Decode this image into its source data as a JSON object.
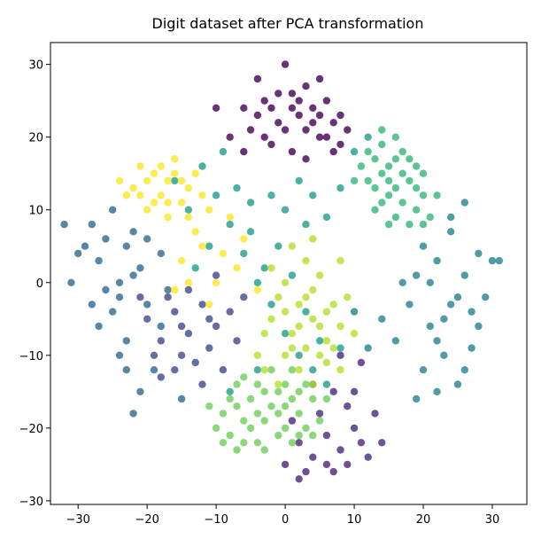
{
  "chart_data": {
    "type": "scatter",
    "title": "Digit dataset after PCA transformation",
    "xlabel": "",
    "ylabel": "",
    "xlim": [
      -34,
      35
    ],
    "ylim": [
      -30.5,
      33
    ],
    "xticks": [
      -30,
      -20,
      -10,
      0,
      10,
      20,
      30
    ],
    "yticks": [
      -30,
      -20,
      -10,
      0,
      10,
      20,
      30
    ],
    "grid": false,
    "legend": "none",
    "colormap": "viridis",
    "point_alpha": 0.8,
    "series": [
      {
        "color": "#440154",
        "points": [
          [
            -4,
            28
          ],
          [
            -3,
            25
          ],
          [
            -1,
            22
          ],
          [
            0,
            30
          ],
          [
            1,
            26
          ],
          [
            2,
            23
          ],
          [
            3,
            21
          ],
          [
            4,
            24
          ],
          [
            5,
            20
          ],
          [
            6,
            25
          ],
          [
            7,
            22
          ],
          [
            8,
            19
          ],
          [
            -5,
            21
          ],
          [
            -6,
            24
          ],
          [
            -2,
            19
          ],
          [
            1,
            18
          ],
          [
            3,
            27
          ],
          [
            5,
            28
          ],
          [
            -4,
            23
          ],
          [
            2,
            25
          ],
          [
            4,
            22
          ],
          [
            6,
            20
          ],
          [
            8,
            23
          ],
          [
            -1,
            26
          ],
          [
            0,
            21
          ],
          [
            9,
            21
          ],
          [
            -8,
            20
          ],
          [
            -10,
            24
          ],
          [
            -3,
            20
          ],
          [
            7,
            18
          ],
          [
            -6,
            18
          ],
          [
            3,
            17
          ],
          [
            1,
            24
          ],
          [
            5,
            23
          ],
          [
            -2,
            24
          ]
        ]
      },
      {
        "color": "#482878",
        "points": [
          [
            1,
            -19
          ],
          [
            2,
            -22
          ],
          [
            4,
            -24
          ],
          [
            6,
            -21
          ],
          [
            8,
            -23
          ],
          [
            10,
            -20
          ],
          [
            9,
            -17
          ],
          [
            11,
            -22
          ],
          [
            7,
            -26
          ],
          [
            3,
            -26
          ],
          [
            5,
            -18
          ],
          [
            12,
            -24
          ],
          [
            0,
            -25
          ],
          [
            6,
            -25
          ],
          [
            9,
            -25
          ],
          [
            13,
            -18
          ],
          [
            7,
            -15
          ],
          [
            4,
            -14
          ],
          [
            10,
            -15
          ],
          [
            8,
            -10
          ],
          [
            2,
            -27
          ],
          [
            11,
            -11
          ],
          [
            14,
            -22
          ]
        ]
      },
      {
        "color": "#3e4989",
        "points": [
          [
            -20,
            -5
          ],
          [
            -18,
            -8
          ],
          [
            -16,
            -4
          ],
          [
            -14,
            -7
          ],
          [
            -12,
            -3
          ],
          [
            -15,
            -10
          ],
          [
            -17,
            -2
          ],
          [
            -10,
            -6
          ],
          [
            -13,
            -11
          ],
          [
            -19,
            -10
          ],
          [
            -11,
            -9
          ],
          [
            -8,
            -4
          ],
          [
            -14,
            -1
          ],
          [
            -21,
            -2
          ],
          [
            -16,
            -12
          ],
          [
            -9,
            -12
          ],
          [
            -12,
            -14
          ],
          [
            -7,
            -8
          ],
          [
            -18,
            -13
          ],
          [
            -10,
            1
          ],
          [
            -6,
            -2
          ],
          [
            -15,
            -6
          ],
          [
            -11,
            -5
          ]
        ]
      },
      {
        "color": "#31688e",
        "points": [
          [
            -28,
            8
          ],
          [
            -25,
            10
          ],
          [
            -23,
            5
          ],
          [
            -27,
            3
          ],
          [
            -24,
            0
          ],
          [
            -21,
            2
          ],
          [
            -26,
            -1
          ],
          [
            -22,
            7
          ],
          [
            -29,
            5
          ],
          [
            -20,
            -3
          ],
          [
            -18,
            4
          ],
          [
            -25,
            -4
          ],
          [
            -23,
            -8
          ],
          [
            -19,
            -12
          ],
          [
            -21,
            -15
          ],
          [
            -27,
            -6
          ],
          [
            -31,
            0
          ],
          [
            -32,
            8
          ],
          [
            -24,
            -2
          ],
          [
            -22,
            1
          ],
          [
            -17,
            -1
          ],
          [
            -26,
            6
          ],
          [
            -30,
            4
          ],
          [
            -20,
            6
          ],
          [
            -23,
            -12
          ],
          [
            -28,
            -3
          ],
          [
            -18,
            -6
          ],
          [
            -24,
            -10
          ],
          [
            -15,
            -16
          ],
          [
            -22,
            -18
          ]
        ]
      },
      {
        "color": "#26828e",
        "points": [
          [
            20,
            5
          ],
          [
            22,
            3
          ],
          [
            24,
            7
          ],
          [
            26,
            1
          ],
          [
            28,
            4
          ],
          [
            25,
            -2
          ],
          [
            23,
            -5
          ],
          [
            21,
            0
          ],
          [
            27,
            -4
          ],
          [
            24,
            9
          ],
          [
            26,
            11
          ],
          [
            29,
            -2
          ],
          [
            30,
            3
          ],
          [
            18,
            -3
          ],
          [
            16,
            -8
          ],
          [
            20,
            -12
          ],
          [
            23,
            -10
          ],
          [
            25,
            -14
          ],
          [
            27,
            -9
          ],
          [
            19,
            1
          ],
          [
            22,
            -8
          ],
          [
            28,
            -6
          ],
          [
            31,
            3
          ],
          [
            17,
            0
          ],
          [
            21,
            -6
          ],
          [
            26,
            -12
          ],
          [
            22,
            -15
          ],
          [
            24,
            -3
          ],
          [
            14,
            -5
          ],
          [
            12,
            -9
          ],
          [
            10,
            -4
          ],
          [
            19,
            -16
          ]
        ]
      },
      {
        "color": "#1f9e89",
        "points": [
          [
            -12,
            16
          ],
          [
            -10,
            12
          ],
          [
            -8,
            8
          ],
          [
            -6,
            4
          ],
          [
            -4,
            0
          ],
          [
            -2,
            -3
          ],
          [
            0,
            -7
          ],
          [
            2,
            -10
          ],
          [
            4,
            -12
          ],
          [
            -14,
            10
          ],
          [
            -9,
            18
          ],
          [
            -7,
            13
          ],
          [
            -5,
            7
          ],
          [
            -3,
            2
          ],
          [
            -1,
            5
          ],
          [
            1,
            1
          ],
          [
            3,
            -4
          ],
          [
            5,
            -8
          ],
          [
            -11,
            5
          ],
          [
            -13,
            2
          ],
          [
            2,
            14
          ],
          [
            4,
            12
          ],
          [
            6,
            9
          ],
          [
            8,
            13
          ],
          [
            10,
            18
          ],
          [
            12,
            20
          ],
          [
            -8,
            -15
          ],
          [
            -4,
            -12
          ],
          [
            6,
            -14
          ],
          [
            8,
            -9
          ],
          [
            -5,
            11
          ],
          [
            -16,
            14
          ],
          [
            0,
            10
          ],
          [
            3,
            8
          ],
          [
            -2,
            12
          ]
        ]
      },
      {
        "color": "#35b779",
        "points": [
          [
            12,
            18
          ],
          [
            14,
            15
          ],
          [
            16,
            17
          ],
          [
            18,
            14
          ],
          [
            15,
            12
          ],
          [
            13,
            13
          ],
          [
            17,
            11
          ],
          [
            19,
            16
          ],
          [
            20,
            12
          ],
          [
            14,
            19
          ],
          [
            11,
            16
          ],
          [
            16,
            9
          ],
          [
            18,
            8
          ],
          [
            13,
            10
          ],
          [
            15,
            16
          ],
          [
            17,
            18
          ],
          [
            19,
            10
          ],
          [
            12,
            14
          ],
          [
            20,
            15
          ],
          [
            16,
            13
          ],
          [
            14,
            11
          ],
          [
            18,
            17
          ],
          [
            21,
            9
          ],
          [
            10,
            14
          ],
          [
            15,
            8
          ],
          [
            19,
            13
          ],
          [
            22,
            12
          ],
          [
            17,
            15
          ],
          [
            13,
            17
          ],
          [
            16,
            20
          ],
          [
            14,
            21
          ],
          [
            20,
            8
          ],
          [
            15,
            14
          ]
        ]
      },
      {
        "color": "#6ece58",
        "points": [
          [
            -7,
            -17
          ],
          [
            -5,
            -20
          ],
          [
            -3,
            -15
          ],
          [
            -1,
            -18
          ],
          [
            1,
            -16
          ],
          [
            3,
            -20
          ],
          [
            -6,
            -13
          ],
          [
            -4,
            -22
          ],
          [
            -2,
            -12
          ],
          [
            0,
            -14
          ],
          [
            2,
            -18
          ],
          [
            4,
            -16
          ],
          [
            -8,
            -21
          ],
          [
            -9,
            -18
          ],
          [
            -3,
            -19
          ],
          [
            -1,
            -21
          ],
          [
            1,
            -22
          ],
          [
            5,
            -19
          ],
          [
            -5,
            -16
          ],
          [
            -7,
            -14
          ],
          [
            3,
            -14
          ],
          [
            -2,
            -17
          ],
          [
            0,
            -20
          ],
          [
            -10,
            -20
          ],
          [
            -6,
            -19
          ],
          [
            2,
            -15
          ],
          [
            4,
            -21
          ],
          [
            -4,
            -14
          ],
          [
            -8,
            -16
          ],
          [
            6,
            -16
          ],
          [
            -1,
            -15
          ],
          [
            -11,
            -17
          ],
          [
            -3,
            -23
          ],
          [
            -6,
            -22
          ],
          [
            1,
            -12
          ],
          [
            -9,
            -22
          ],
          [
            0,
            -17
          ],
          [
            2,
            -21
          ],
          [
            -4,
            -18
          ],
          [
            -7,
            -23
          ]
        ]
      },
      {
        "color": "#b5de2b",
        "points": [
          [
            0,
            0
          ],
          [
            2,
            -3
          ],
          [
            4,
            -1
          ],
          [
            6,
            -4
          ],
          [
            8,
            -6
          ],
          [
            -2,
            -5
          ],
          [
            1,
            -7
          ],
          [
            3,
            -9
          ],
          [
            5,
            -6
          ],
          [
            7,
            -9
          ],
          [
            -1,
            -2
          ],
          [
            0,
            -10
          ],
          [
            2,
            -12
          ],
          [
            4,
            -14
          ],
          [
            6,
            -11
          ],
          [
            8,
            -12
          ],
          [
            -3,
            -7
          ],
          [
            -4,
            -10
          ],
          [
            3,
            3
          ],
          [
            5,
            1
          ],
          [
            1,
            5
          ],
          [
            -2,
            2
          ],
          [
            9,
            -2
          ],
          [
            4,
            -5
          ],
          [
            6,
            -8
          ],
          [
            0,
            -4
          ],
          [
            -3,
            -12
          ],
          [
            2,
            -6
          ],
          [
            5,
            -10
          ],
          [
            7,
            -3
          ],
          [
            3,
            -2
          ],
          [
            1,
            -9
          ],
          [
            -1,
            -14
          ],
          [
            4,
            6
          ],
          [
            8,
            3
          ],
          [
            10,
            -7
          ]
        ]
      },
      {
        "color": "#fde725",
        "points": [
          [
            -20,
            14
          ],
          [
            -18,
            12
          ],
          [
            -16,
            15
          ],
          [
            -14,
            13
          ],
          [
            -17,
            11
          ],
          [
            -19,
            15
          ],
          [
            -15,
            11
          ],
          [
            -21,
            12
          ],
          [
            -16,
            17
          ],
          [
            -13,
            15
          ],
          [
            -18,
            16
          ],
          [
            -12,
            12
          ],
          [
            -20,
            10
          ],
          [
            -17,
            14
          ],
          [
            -14,
            9
          ],
          [
            -19,
            11
          ],
          [
            -22,
            13
          ],
          [
            -15,
            14
          ],
          [
            -11,
            10
          ],
          [
            -13,
            7
          ],
          [
            -9,
            4
          ],
          [
            -10,
            0
          ],
          [
            -12,
            5
          ],
          [
            -8,
            9
          ],
          [
            -7,
            2
          ],
          [
            -15,
            3
          ],
          [
            -16,
            -1
          ],
          [
            -11,
            -3
          ],
          [
            -6,
            6
          ],
          [
            -4,
            -1
          ],
          [
            -14,
            0
          ],
          [
            -23,
            12
          ],
          [
            -21,
            16
          ],
          [
            -17,
            9
          ],
          [
            -24,
            14
          ]
        ]
      }
    ]
  }
}
